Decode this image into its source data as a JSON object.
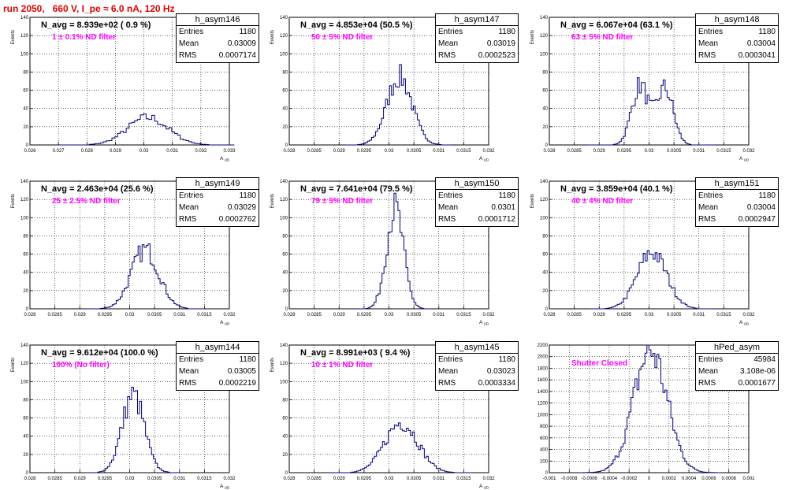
{
  "page": {
    "title": "run 2050,   660 V, I_pe ≈ 6.0 nA, 120 Hz",
    "accent_color": "#e00000",
    "line_color": "#000080",
    "label_color": "#ff00ff"
  },
  "chart_data": [
    {
      "type": "histogram",
      "title": "h_asym146",
      "n_avg": "N_avg = 8.939e+02 ( 0.9 %)",
      "filter": "1 ± 0.1% ND filter",
      "stats": {
        "entries": "1180",
        "mean": "0.03009",
        "rms": "0.0007174"
      },
      "ylabel": "Events",
      "xlabel": "A_UD",
      "xlim": [
        0.026,
        0.033
      ],
      "ylim": [
        0,
        140
      ],
      "xticks": [
        "0.026",
        "0.027",
        "0.028",
        "0.029",
        "0.03",
        "0.031",
        "0.032",
        "0.033"
      ],
      "yticks": [
        "0",
        "20",
        "40",
        "60",
        "80",
        "100",
        "120",
        "140"
      ],
      "dist": {
        "mean": 0.03009,
        "rms": 0.0007174,
        "peak": 30,
        "binw": 0.0001
      }
    },
    {
      "type": "histogram",
      "title": "h_asym147",
      "n_avg": "N_avg = 4.853e+04 (50.5 %)",
      "filter": "50 ± 5% ND filter",
      "stats": {
        "entries": "1180",
        "mean": "0.03019",
        "rms": "0.0002523"
      },
      "ylabel": "Events",
      "xlabel": "A_UD",
      "xlim": [
        0.028,
        0.032
      ],
      "ylim": [
        0,
        140
      ],
      "xticks": [
        "0.028",
        "0.0285",
        "0.029",
        "0.0295",
        "0.03",
        "0.0305",
        "0.031",
        "0.0315",
        "0.032"
      ],
      "yticks": [
        "0",
        "20",
        "40",
        "60",
        "80",
        "100",
        "120",
        "140"
      ],
      "dist": {
        "mean": 0.03019,
        "rms": 0.0002523,
        "peak": 75,
        "binw": 4e-05
      }
    },
    {
      "type": "histogram",
      "title": "h_asym148",
      "n_avg": "N_avg = 6.067e+04 (63.1 %)",
      "filter": "63 ± 5% ND filter",
      "stats": {
        "entries": "1180",
        "mean": "0.03004",
        "rms": "0.0003041"
      },
      "ylabel": "Events",
      "xlabel": "A_UD",
      "xlim": [
        0.028,
        0.032
      ],
      "ylim": [
        0,
        140
      ],
      "xticks": [
        "0.028",
        "0.0285",
        "0.029",
        "0.0295",
        "0.03",
        "0.0305",
        "0.031",
        "0.0315",
        "0.032"
      ],
      "yticks": [
        "0",
        "20",
        "40",
        "60",
        "80",
        "100",
        "120",
        "140"
      ],
      "dist": {
        "mean": 0.03004,
        "rms": 0.0003041,
        "peak": 62,
        "binw": 4e-05,
        "bimodal": true
      }
    },
    {
      "type": "histogram",
      "title": "h_asym149",
      "n_avg": "N_avg = 2.463e+04 (25.6 %)",
      "filter": "25 ± 2.5% ND filter",
      "stats": {
        "entries": "1180",
        "mean": "0.03029",
        "rms": "0.0002762"
      },
      "ylabel": "Events",
      "xlabel": "A_UD",
      "xlim": [
        0.028,
        0.032
      ],
      "ylim": [
        0,
        140
      ],
      "xticks": [
        "0.028",
        "0.0285",
        "0.029",
        "0.0295",
        "0.03",
        "0.0305",
        "0.031",
        "0.0315",
        "0.032"
      ],
      "yticks": [
        "0",
        "20",
        "40",
        "60",
        "80",
        "100",
        "120",
        "140"
      ],
      "dist": {
        "mean": 0.03029,
        "rms": 0.0002762,
        "peak": 65,
        "binw": 4e-05
      }
    },
    {
      "type": "histogram",
      "title": "h_asym150",
      "n_avg": "N_avg = 7.641e+04 (79.5 %)",
      "filter": "79 ± 5% ND filter",
      "stats": {
        "entries": "1180",
        "mean": "0.0301",
        "rms": "0.0001712"
      },
      "ylabel": "Events",
      "xlabel": "A_UD",
      "xlim": [
        0.028,
        0.032
      ],
      "ylim": [
        0,
        140
      ],
      "xticks": [
        "0.028",
        "0.0285",
        "0.029",
        "0.0295",
        "0.03",
        "0.0305",
        "0.031",
        "0.0315",
        "0.032"
      ],
      "yticks": [
        "0",
        "20",
        "40",
        "60",
        "80",
        "100",
        "120",
        "140"
      ],
      "dist": {
        "mean": 0.0301,
        "rms": 0.0001712,
        "peak": 110,
        "binw": 4e-05
      }
    },
    {
      "type": "histogram",
      "title": "h_asym151",
      "n_avg": "N_avg = 3.859e+04 (40.1 %)",
      "filter": "40 ± 4% ND filter",
      "stats": {
        "entries": "1180",
        "mean": "0.03004",
        "rms": "0.0002947"
      },
      "ylabel": "Events",
      "xlabel": "A_UD",
      "xlim": [
        0.028,
        0.032
      ],
      "ylim": [
        0,
        140
      ],
      "xticks": [
        "0.028",
        "0.0285",
        "0.029",
        "0.0295",
        "0.03",
        "0.0305",
        "0.031",
        "0.0315",
        "0.032"
      ],
      "yticks": [
        "0",
        "20",
        "40",
        "60",
        "80",
        "100",
        "120",
        "140"
      ],
      "dist": {
        "mean": 0.03004,
        "rms": 0.0002947,
        "peak": 62,
        "binw": 4e-05
      }
    },
    {
      "type": "histogram",
      "title": "h_asym144",
      "n_avg": "N_avg = 9.612e+04 (100.0 %)",
      "filter": "100% (No filter)",
      "stats": {
        "entries": "1180",
        "mean": "0.03005",
        "rms": "0.0002219"
      },
      "ylabel": "Events",
      "xlabel": "A_UD",
      "xlim": [
        0.028,
        0.032
      ],
      "ylim": [
        0,
        140
      ],
      "xticks": [
        "0.028",
        "0.0285",
        "0.029",
        "0.0295",
        "0.03",
        "0.0305",
        "0.031",
        "0.0315",
        "0.032"
      ],
      "yticks": [
        "0",
        "20",
        "40",
        "60",
        "80",
        "100",
        "120",
        "140"
      ],
      "dist": {
        "mean": 0.03005,
        "rms": 0.0002219,
        "peak": 85,
        "binw": 4e-05
      }
    },
    {
      "type": "histogram",
      "title": "h_asym145",
      "n_avg": "N_avg = 8.991e+03 ( 9.4 %)",
      "filter": "10 ± 1% ND filter",
      "stats": {
        "entries": "1180",
        "mean": "0.03023",
        "rms": "0.0003334"
      },
      "ylabel": "Events",
      "xlabel": "A_UD",
      "xlim": [
        0.028,
        0.032
      ],
      "ylim": [
        0,
        140
      ],
      "xticks": [
        "0.028",
        "0.0285",
        "0.029",
        "0.0295",
        "0.03",
        "0.0305",
        "0.031",
        "0.0315",
        "0.032"
      ],
      "yticks": [
        "0",
        "20",
        "40",
        "60",
        "80",
        "100",
        "120",
        "140"
      ],
      "dist": {
        "mean": 0.03023,
        "rms": 0.0003334,
        "peak": 55,
        "binw": 4e-05
      }
    },
    {
      "type": "histogram",
      "title": "hPed_asym",
      "n_avg": "",
      "filter": "Shutter Closed",
      "stats": {
        "entries": "45984",
        "mean": "3.108e-06",
        "rms": "0.0001677"
      },
      "ylabel": "",
      "xlabel": "",
      "xlim": [
        -0.001,
        0.001
      ],
      "ylim": [
        0,
        2300
      ],
      "xticks": [
        "-0.001",
        "-0.0008",
        "-0.0006",
        "-0.0004",
        "-0.0002",
        "0",
        "0.0002",
        "0.0004",
        "0.0006",
        "0.0008",
        "0.001"
      ],
      "yticks": [
        "0",
        "200",
        "400",
        "600",
        "800",
        "1000",
        "1200",
        "1400",
        "1600",
        "1800",
        "2000",
        "2200"
      ],
      "dist": {
        "mean": 3.108e-06,
        "rms": 0.0001677,
        "peak": 2200,
        "binw": 2e-05
      }
    }
  ]
}
